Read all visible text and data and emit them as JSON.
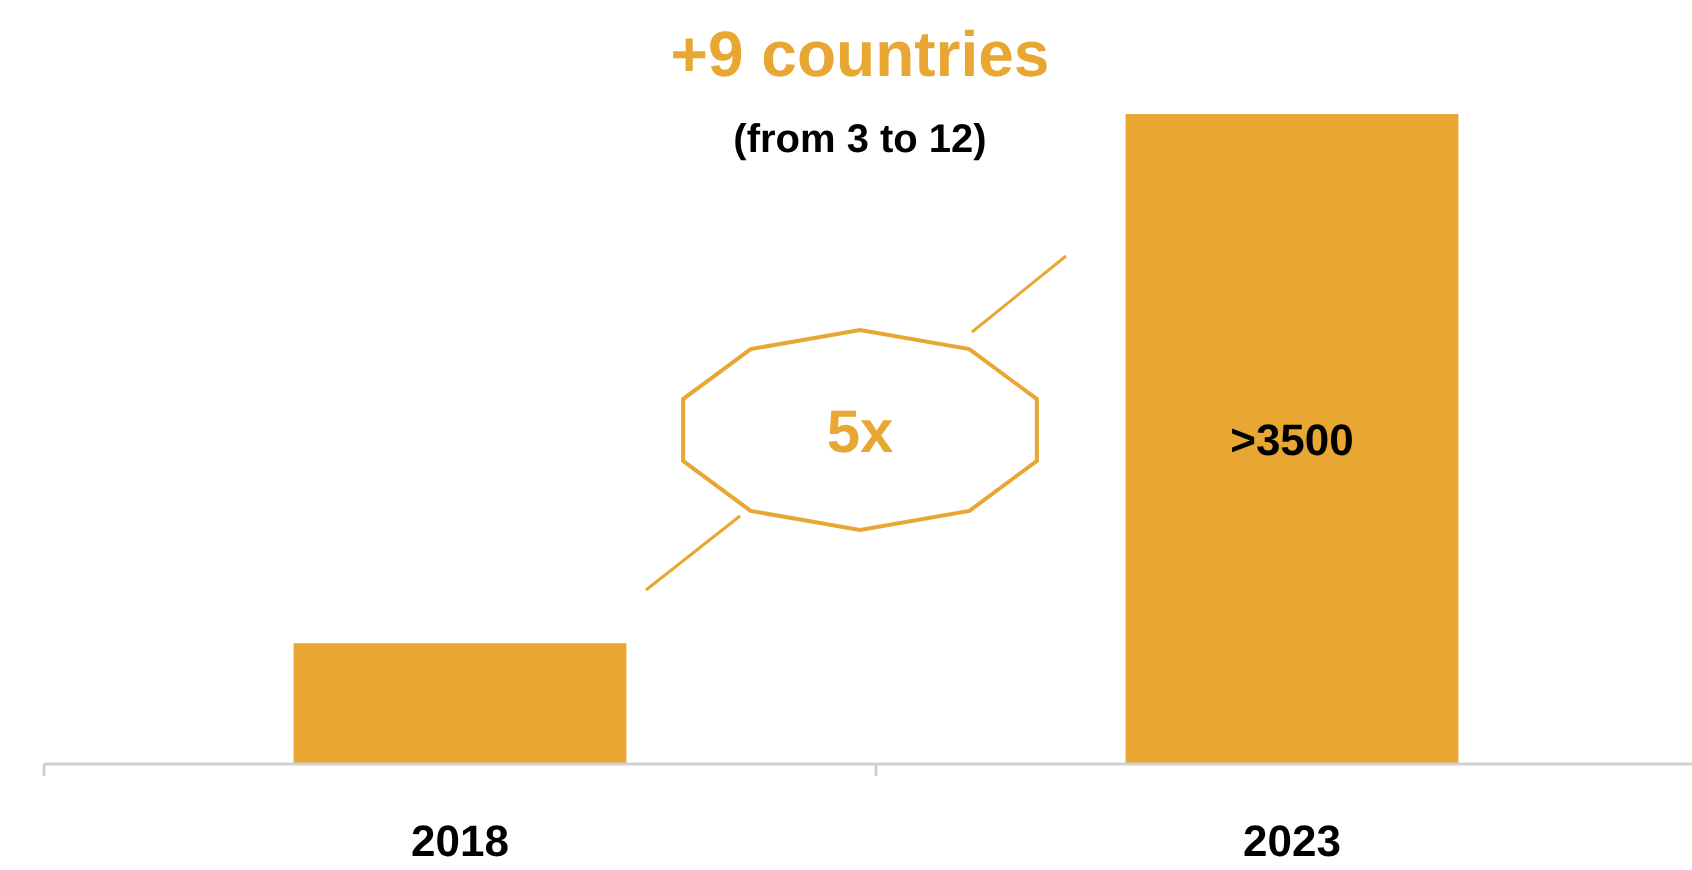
{
  "chart_data": {
    "type": "bar",
    "title": "+9 countries",
    "subtitle": "(from 3 to 12)",
    "categories": [
      "2018",
      "2023"
    ],
    "values": [
      650,
      3500
    ],
    "value_labels": [
      null,
      ">3500"
    ],
    "color": "#e8a733",
    "annotations": [
      "5x"
    ]
  }
}
